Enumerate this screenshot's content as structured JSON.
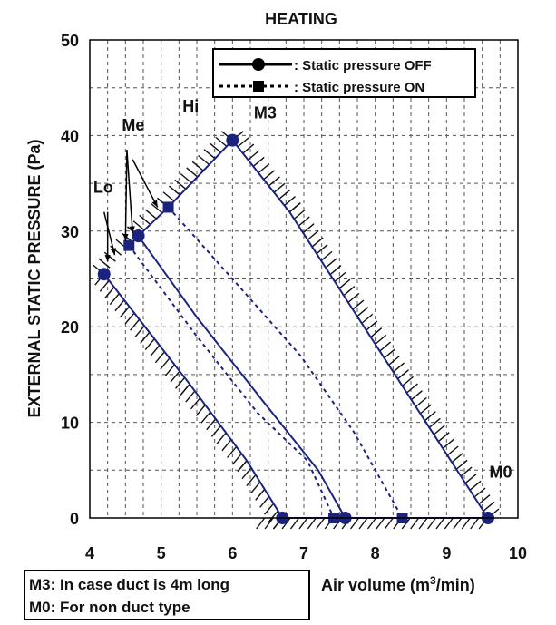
{
  "chart_data": {
    "type": "line",
    "title": "HEATING",
    "ylabel": "EXTERNAL STATIC PRESSURE (Pa)",
    "xlabel_prefix": "Air volume (m",
    "xlabel_sup": "3",
    "xlabel_suffix": "/min)",
    "xlim": [
      4,
      10
    ],
    "ylim": [
      0,
      50
    ],
    "x_ticks": [
      4,
      5,
      6,
      7,
      8,
      9,
      10
    ],
    "y_ticks": [
      0,
      10,
      20,
      30,
      40,
      50
    ],
    "grid": true,
    "legend": {
      "position": "top-right",
      "entries": [
        {
          "label": ": Static pressure OFF",
          "style": "solid",
          "marker": "circle"
        },
        {
          "label": ": Static pressure ON",
          "style": "dotted",
          "marker": "square"
        }
      ]
    },
    "series": [
      {
        "name": "Static pressure OFF",
        "style": "solid",
        "marker": "circle",
        "segments": [
          {
            "points": [
              [
                4.2,
                25.5
              ],
              [
                5.4,
                14
              ],
              [
                6.2,
                6
              ],
              [
                6.7,
                0
              ]
            ],
            "markers": [
              [
                4.2,
                25.5
              ],
              [
                6.7,
                0
              ]
            ]
          },
          {
            "points": [
              [
                4.68,
                29.5
              ],
              [
                5.5,
                21
              ],
              [
                6.45,
                12
              ],
              [
                7.2,
                5
              ],
              [
                7.58,
                0
              ]
            ],
            "markers": [
              [
                4.68,
                29.5
              ],
              [
                7.58,
                0
              ]
            ]
          },
          {
            "points": [
              [
                4.68,
                29.5
              ],
              [
                5.1,
                32.5
              ],
              [
                6.0,
                39.5
              ],
              [
                6.8,
                32
              ],
              [
                9.58,
                0
              ]
            ],
            "markers": [
              [
                4.68,
                29.5
              ],
              [
                6.0,
                39.5
              ],
              [
                9.58,
                0
              ]
            ]
          },
          {
            "points": [
              [
                6.7,
                0
              ],
              [
                9.58,
                0
              ]
            ],
            "markers": []
          }
        ]
      },
      {
        "name": "Static pressure ON",
        "style": "dotted",
        "marker": "square",
        "segments": [
          {
            "points": [
              [
                4.55,
                28.5
              ],
              [
                5.5,
                19
              ],
              [
                6.35,
                11
              ],
              [
                7.05,
                6
              ],
              [
                7.42,
                0
              ]
            ],
            "markers": [
              [
                4.55,
                28.5
              ],
              [
                7.42,
                0
              ]
            ]
          },
          {
            "points": [
              [
                5.1,
                32.5
              ],
              [
                6.0,
                25
              ],
              [
                6.95,
                17
              ],
              [
                7.7,
                9
              ],
              [
                8.38,
                0
              ]
            ],
            "markers": [
              [
                5.1,
                32.5
              ],
              [
                8.38,
                0
              ]
            ]
          }
        ]
      }
    ],
    "annotations": [
      {
        "text": "Lo",
        "x": 4.05,
        "y": 34
      },
      {
        "text": "Me",
        "x": 4.45,
        "y": 40.5
      },
      {
        "text": "Hi",
        "x": 5.3,
        "y": 42.5
      },
      {
        "text": "M3",
        "x": 6.3,
        "y": 41.8
      },
      {
        "text": "M0",
        "x": 9.6,
        "y": 4.2
      }
    ]
  },
  "notes": {
    "m3": "M3: In case duct is 4m long",
    "m0": "M0: For non duct type"
  }
}
